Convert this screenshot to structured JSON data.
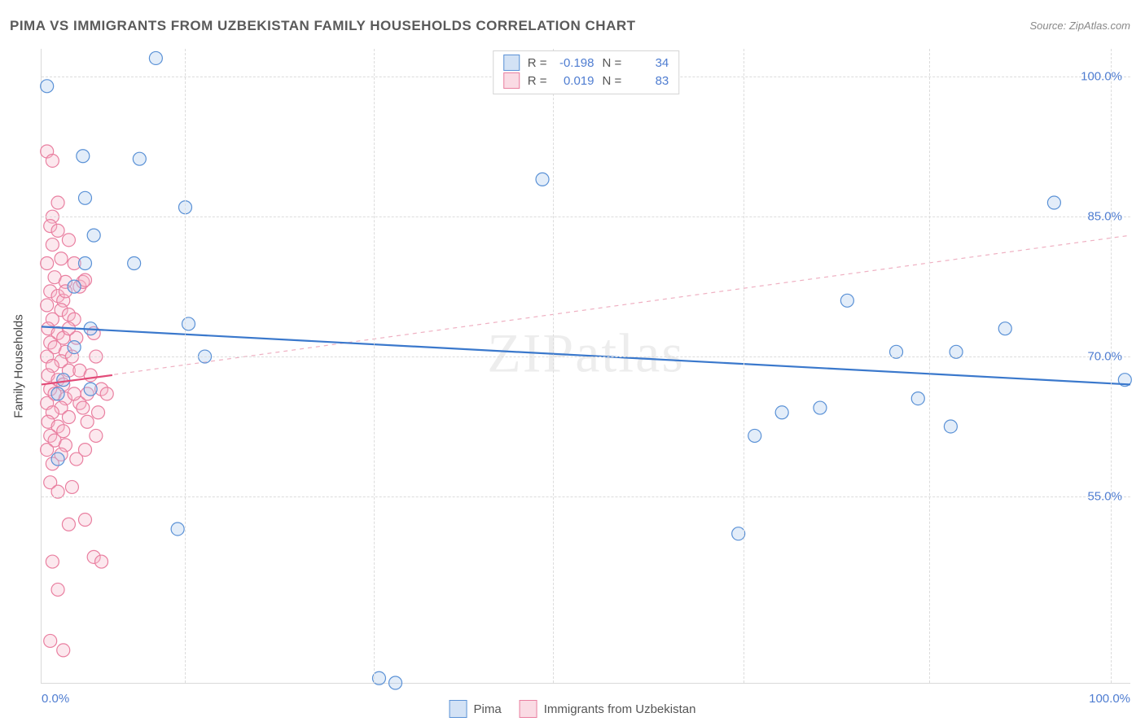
{
  "title": "PIMA VS IMMIGRANTS FROM UZBEKISTAN FAMILY HOUSEHOLDS CORRELATION CHART",
  "source_label": "Source: ZipAtlas.com",
  "y_axis_label": "Family Households",
  "watermark": "ZIPatlas",
  "chart": {
    "type": "scatter",
    "xlim": [
      0,
      100
    ],
    "ylim": [
      35,
      103
    ],
    "x_ticks": [
      0,
      100
    ],
    "x_tick_labels": [
      "0.0%",
      "100.0%"
    ],
    "y_ticks": [
      55,
      70,
      85,
      100
    ],
    "y_tick_labels": [
      "55.0%",
      "70.0%",
      "85.0%",
      "100.0%"
    ],
    "x_gridlines": [
      13.2,
      30.5,
      47.0,
      64.5,
      81.5,
      98.2
    ],
    "background_color": "#ffffff",
    "grid_color": "#dcdcdc",
    "tick_label_color": "#4f7dd1",
    "axis_label_color": "#444444",
    "marker_radius": 8,
    "marker_stroke_width": 1.2,
    "marker_fill_opacity": 0.32,
    "series": [
      {
        "name": "Pima",
        "color_stroke": "#5a91d6",
        "color_fill": "#a8c6ec",
        "R": "-0.198",
        "N": "34",
        "trend": {
          "x1": 0,
          "y1": 73.2,
          "x2": 100,
          "y2": 67.0,
          "dashed": false,
          "color": "#3a78cc",
          "width": 2.5
        },
        "points": [
          [
            0.5,
            99.0
          ],
          [
            10.5,
            102.0
          ],
          [
            3.8,
            91.5
          ],
          [
            9.0,
            91.2
          ],
          [
            4.0,
            87.0
          ],
          [
            13.2,
            86.0
          ],
          [
            4.8,
            83.0
          ],
          [
            4.0,
            80.0
          ],
          [
            8.5,
            80.0
          ],
          [
            3.0,
            77.5
          ],
          [
            4.5,
            73.0
          ],
          [
            13.5,
            73.5
          ],
          [
            15.0,
            70.0
          ],
          [
            3.0,
            71.0
          ],
          [
            2.0,
            67.5
          ],
          [
            1.5,
            66.0
          ],
          [
            4.5,
            66.5
          ],
          [
            1.5,
            59.0
          ],
          [
            12.5,
            51.5
          ],
          [
            31.0,
            35.5
          ],
          [
            32.5,
            35.0
          ],
          [
            46.0,
            89.0
          ],
          [
            64.0,
            51.0
          ],
          [
            65.5,
            61.5
          ],
          [
            68.0,
            64.0
          ],
          [
            71.5,
            64.5
          ],
          [
            74.0,
            76.0
          ],
          [
            78.5,
            70.5
          ],
          [
            80.5,
            65.5
          ],
          [
            83.5,
            62.5
          ],
          [
            84.0,
            70.5
          ],
          [
            88.5,
            73.0
          ],
          [
            93.0,
            86.5
          ],
          [
            99.5,
            67.5
          ]
        ]
      },
      {
        "name": "Immigrants from Uzbekistan",
        "color_stroke": "#e97fa0",
        "color_fill": "#f5b7c9",
        "R": "0.019",
        "N": "83",
        "trend_short": {
          "x1": 0,
          "y1": 67.0,
          "x2": 6.5,
          "y2": 68.0,
          "dashed": false,
          "color": "#e24b78",
          "width": 2.2
        },
        "trend_ext": {
          "x1": 0,
          "y1": 67.0,
          "x2": 100,
          "y2": 83.0,
          "dashed": true,
          "color": "#efb0c2",
          "width": 1.2
        },
        "points": [
          [
            0.5,
            92.0
          ],
          [
            1.0,
            91.0
          ],
          [
            1.5,
            86.5
          ],
          [
            1.0,
            85.0
          ],
          [
            0.8,
            84.0
          ],
          [
            1.5,
            83.5
          ],
          [
            1.0,
            82.0
          ],
          [
            2.5,
            82.5
          ],
          [
            1.8,
            80.5
          ],
          [
            0.5,
            80.0
          ],
          [
            1.2,
            78.5
          ],
          [
            2.2,
            78.0
          ],
          [
            0.8,
            77.0
          ],
          [
            1.5,
            76.5
          ],
          [
            2.0,
            76.0
          ],
          [
            0.5,
            75.5
          ],
          [
            1.8,
            75.0
          ],
          [
            1.0,
            74.0
          ],
          [
            2.5,
            74.5
          ],
          [
            0.6,
            73.0
          ],
          [
            1.5,
            72.5
          ],
          [
            2.0,
            72.0
          ],
          [
            0.8,
            71.5
          ],
          [
            1.2,
            71.0
          ],
          [
            2.2,
            70.5
          ],
          [
            0.5,
            70.0
          ],
          [
            1.8,
            69.5
          ],
          [
            1.0,
            69.0
          ],
          [
            2.5,
            68.5
          ],
          [
            0.6,
            68.0
          ],
          [
            1.5,
            67.5
          ],
          [
            2.0,
            67.0
          ],
          [
            0.8,
            66.5
          ],
          [
            1.2,
            66.0
          ],
          [
            2.2,
            65.5
          ],
          [
            0.5,
            65.0
          ],
          [
            1.8,
            64.5
          ],
          [
            3.5,
            65.0
          ],
          [
            4.2,
            66.0
          ],
          [
            1.0,
            64.0
          ],
          [
            2.5,
            63.5
          ],
          [
            0.6,
            63.0
          ],
          [
            1.5,
            62.5
          ],
          [
            2.0,
            62.0
          ],
          [
            0.8,
            61.5
          ],
          [
            1.2,
            61.0
          ],
          [
            2.2,
            60.5
          ],
          [
            0.5,
            60.0
          ],
          [
            1.8,
            59.5
          ],
          [
            4.0,
            60.0
          ],
          [
            1.0,
            58.5
          ],
          [
            0.8,
            56.5
          ],
          [
            1.5,
            55.5
          ],
          [
            2.5,
            52.0
          ],
          [
            4.0,
            52.5
          ],
          [
            4.8,
            48.5
          ],
          [
            5.5,
            48.0
          ],
          [
            1.0,
            48.0
          ],
          [
            1.5,
            45.0
          ],
          [
            0.8,
            39.5
          ],
          [
            2.0,
            38.5
          ],
          [
            3.5,
            77.5
          ],
          [
            3.8,
            78.0
          ],
          [
            4.0,
            78.2
          ],
          [
            3.0,
            74.0
          ],
          [
            3.2,
            72.0
          ],
          [
            5.0,
            70.0
          ],
          [
            3.5,
            68.5
          ],
          [
            4.5,
            68.0
          ],
          [
            5.5,
            66.5
          ],
          [
            3.8,
            64.5
          ],
          [
            4.2,
            63.0
          ],
          [
            5.0,
            61.5
          ],
          [
            3.2,
            59.0
          ],
          [
            3.0,
            66.0
          ],
          [
            2.8,
            70.0
          ],
          [
            2.5,
            73.0
          ],
          [
            2.2,
            77.0
          ],
          [
            6.0,
            66.0
          ],
          [
            4.8,
            72.5
          ],
          [
            5.2,
            64.0
          ],
          [
            3.0,
            80.0
          ],
          [
            2.8,
            56.0
          ]
        ]
      }
    ]
  },
  "legend": {
    "series1_label": "Pima",
    "series2_label": "Immigrants from Uzbekistan"
  },
  "stats_labels": {
    "R": "R =",
    "N": "N ="
  }
}
